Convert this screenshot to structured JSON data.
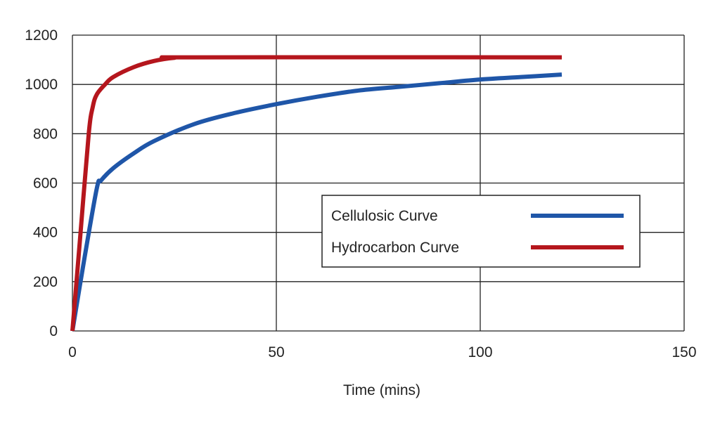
{
  "chart_data": {
    "type": "line",
    "title": "",
    "xlabel": "Time (mins)",
    "ylabel": "",
    "xlim": [
      0,
      150
    ],
    "ylim": [
      0,
      1200
    ],
    "xticks": [
      "0",
      "50",
      "100",
      "150"
    ],
    "yticks": [
      "0",
      "200",
      "400",
      "600",
      "800",
      "1000",
      "1200"
    ],
    "grid": true,
    "legend_position": "center-right",
    "series": [
      {
        "name": "Cellulosic Curve",
        "color": "#1f56a8",
        "x": [
          0,
          3,
          6,
          7,
          10,
          15,
          20,
          30,
          40,
          50,
          60,
          70,
          80,
          90,
          100,
          110,
          120
        ],
        "y": [
          0,
          300,
          580,
          610,
          660,
          720,
          770,
          840,
          885,
          920,
          950,
          975,
          990,
          1005,
          1020,
          1030,
          1040
        ]
      },
      {
        "name": "Hydrocarbon Curve",
        "color": "#b5161d",
        "x": [
          0,
          2,
          4,
          5,
          6,
          8,
          10,
          15,
          20,
          25,
          30,
          120
        ],
        "y": [
          0,
          400,
          800,
          910,
          960,
          1000,
          1030,
          1070,
          1095,
          1108,
          1110,
          1110
        ]
      }
    ]
  }
}
